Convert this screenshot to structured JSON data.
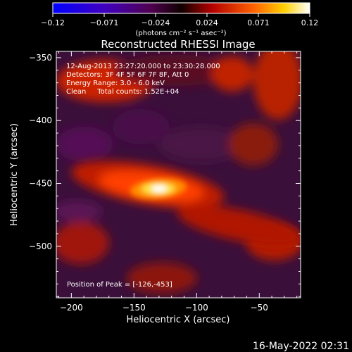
{
  "colorbar": {
    "ticks": [
      "-0.12",
      "-0.071",
      "-0.024",
      "0.024",
      "0.071",
      "0.12"
    ],
    "unit_label": "(photons cm⁻² s⁻¹ asec⁻²)"
  },
  "chart_data": {
    "type": "heatmap",
    "title": "Reconstructed RHESSI Image",
    "xlabel": "Heliocentric X (arcsec)",
    "ylabel": "Heliocentric Y (arcsec)",
    "xlim": [
      -212,
      -17
    ],
    "ylim": [
      -541,
      -345
    ],
    "x_ticks": [
      -200,
      -150,
      -100,
      -50
    ],
    "y_ticks": [
      -350,
      -400,
      -450,
      -500
    ],
    "value_range": [
      -0.12,
      0.12
    ],
    "peak_position": [
      -126,
      -453
    ],
    "annotations": [
      "12-Aug-2013 23:27:20.000 to 23:30:28.000",
      "Detectors: 3F 4F 5F 6F 7F 8F, Att 0",
      "Energy Range: 3.0 - 6.0 keV",
      "Clean     Total counts: 1.52E+04"
    ],
    "peak_label": "Position of Peak = [-126,-453]"
  },
  "footer": {
    "timestamp": "16-May-2022 02:31"
  }
}
